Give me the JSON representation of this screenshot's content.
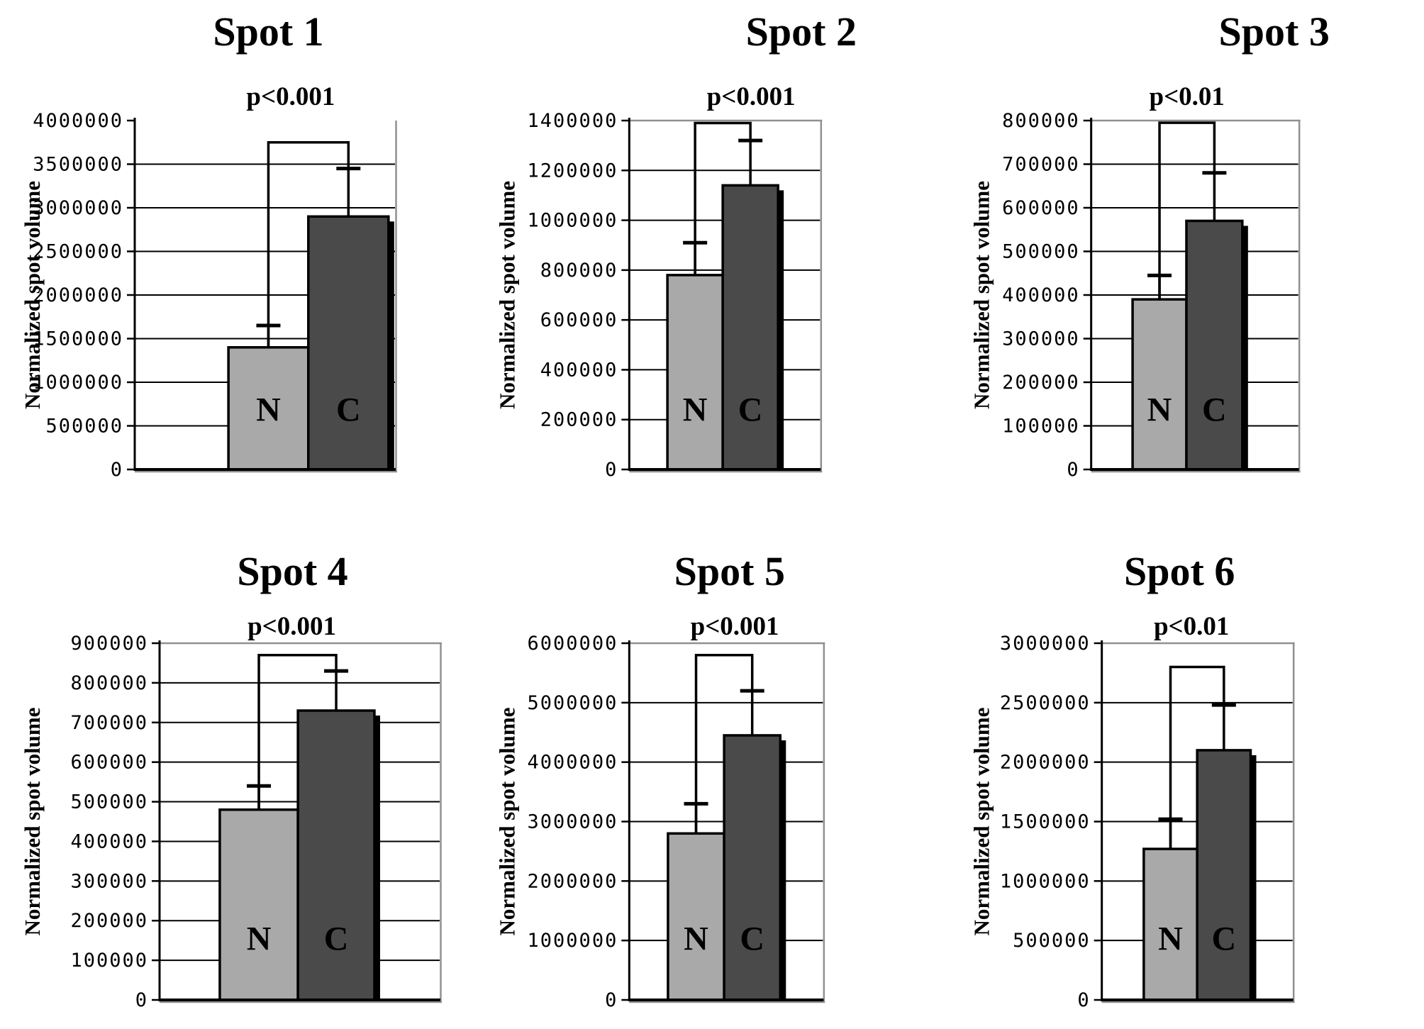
{
  "figure": {
    "ylabel": "Normalized spot volume",
    "bar_labels": [
      "N",
      "C"
    ],
    "colors": {
      "n_bar": "#a9a9a9",
      "c_bar": "#4a4a4a",
      "outline": "#000000",
      "plot_border": "#909090",
      "background": "#ffffff",
      "text": "#000000"
    }
  },
  "chart_data": [
    {
      "type": "bar",
      "title": "Spot 1",
      "p_label": "p<0.001",
      "ylabel": "Normalized spot volume",
      "categories": [
        "N",
        "C"
      ],
      "values": [
        1400000,
        2900000
      ],
      "error_tops": [
        1650000,
        3450000
      ],
      "bracket_y": 3750000,
      "ylim": [
        0,
        4000000
      ],
      "ytick_step": 500000,
      "grid": true,
      "legend": "none"
    },
    {
      "type": "bar",
      "title": "Spot 2",
      "p_label": "p<0.001",
      "ylabel": "Normalized spot volume",
      "categories": [
        "N",
        "C"
      ],
      "values": [
        780000,
        1140000
      ],
      "error_tops": [
        910000,
        1320000
      ],
      "bracket_y": 1390000,
      "ylim": [
        0,
        1400000
      ],
      "ytick_step": 200000,
      "grid": true,
      "legend": "none"
    },
    {
      "type": "bar",
      "title": "Spot 3",
      "p_label": "p<0.01",
      "ylabel": "Normalized spot volume",
      "categories": [
        "N",
        "C"
      ],
      "values": [
        390000,
        570000
      ],
      "error_tops": [
        445000,
        680000
      ],
      "bracket_y": 795000,
      "ylim": [
        0,
        800000
      ],
      "ytick_step": 100000,
      "grid": true,
      "legend": "none"
    },
    {
      "type": "bar",
      "title": "Spot 4",
      "p_label": "p<0.001",
      "ylabel": "Normalized spot volume",
      "categories": [
        "N",
        "C"
      ],
      "values": [
        480000,
        730000
      ],
      "error_tops": [
        540000,
        830000
      ],
      "bracket_y": 870000,
      "ylim": [
        0,
        900000
      ],
      "ytick_step": 100000,
      "grid": true,
      "legend": "none"
    },
    {
      "type": "bar",
      "title": "Spot 5",
      "p_label": "p<0.001",
      "ylabel": "Normalized spot volume",
      "categories": [
        "N",
        "C"
      ],
      "values": [
        2800000,
        4450000
      ],
      "error_tops": [
        3300000,
        5200000
      ],
      "bracket_y": 5800000,
      "ylim": [
        0,
        6000000
      ],
      "ytick_step": 1000000,
      "grid": true,
      "legend": "none"
    },
    {
      "type": "bar",
      "title": "Spot 6",
      "p_label": "p<0.01",
      "ylabel": "Normalized spot volume",
      "categories": [
        "N",
        "C"
      ],
      "values": [
        1270000,
        2100000
      ],
      "error_tops": [
        1520000,
        2480000
      ],
      "bracket_y": 2800000,
      "ylim": [
        0,
        3000000
      ],
      "ytick_step": 500000,
      "grid": true,
      "legend": "none"
    }
  ]
}
